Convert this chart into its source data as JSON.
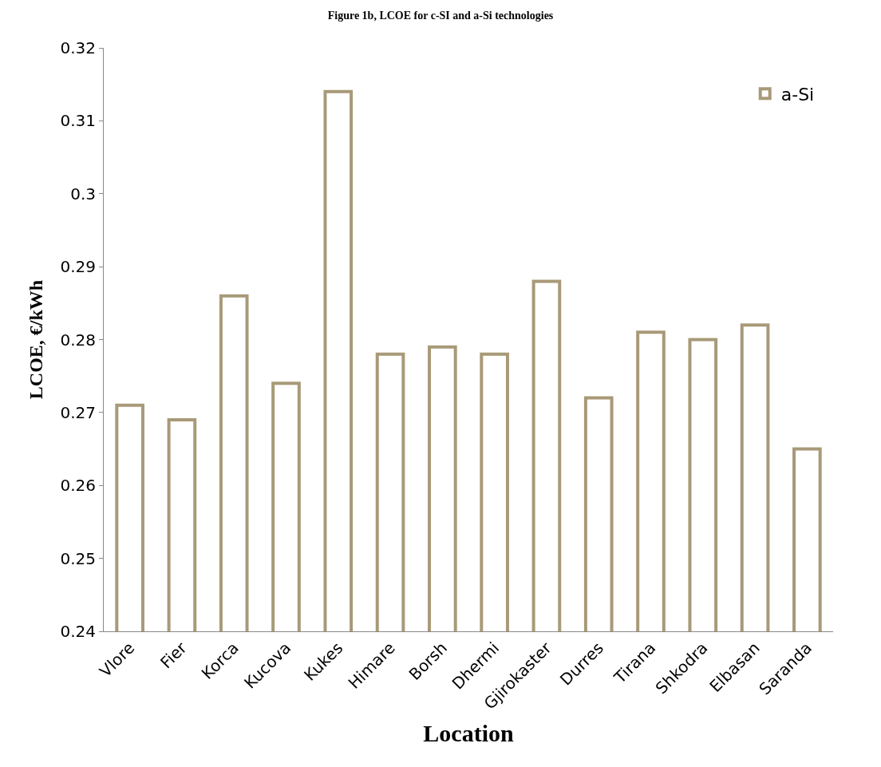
{
  "chart_data": {
    "type": "bar",
    "title": "Figure 1b, LCOE for c-SI and a-Si technologies",
    "xlabel": "Location",
    "ylabel": "LCOE, €/kWh",
    "categories": [
      "Vlore",
      "Fier",
      "Korca",
      "Kucova",
      "Kukes",
      "Himare",
      "Borsh",
      "Dhermi",
      "Gjirokaster",
      "Durres",
      "Tirana",
      "Shkodra",
      "Elbasan",
      "Saranda"
    ],
    "series": [
      {
        "name": "a-Si",
        "color": "#a89a78",
        "values": [
          0.271,
          0.269,
          0.286,
          0.274,
          0.314,
          0.278,
          0.279,
          0.278,
          0.288,
          0.272,
          0.281,
          0.28,
          0.282,
          0.265
        ]
      }
    ],
    "ylim": [
      0.24,
      0.32
    ],
    "yticks": [
      0.24,
      0.25,
      0.26,
      0.27,
      0.28,
      0.29,
      0.3,
      0.31,
      0.32
    ],
    "legend": "top right"
  }
}
